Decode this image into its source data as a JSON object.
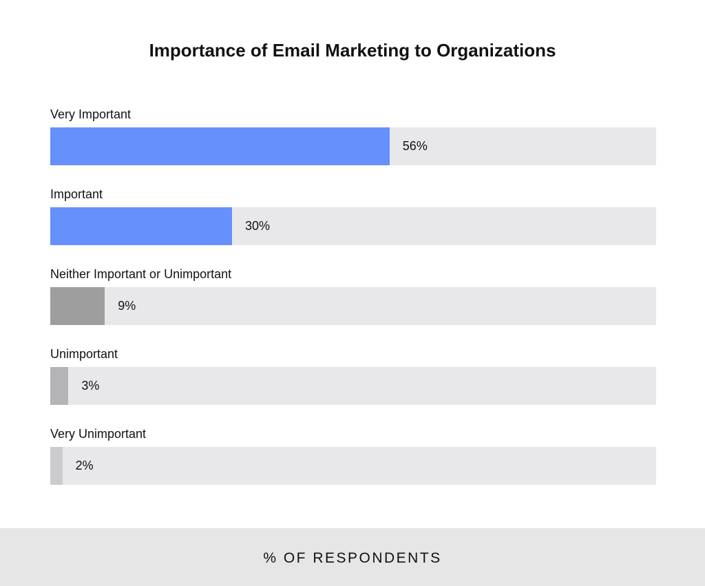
{
  "chart_data": {
    "type": "bar",
    "orientation": "horizontal",
    "title": "Importance of Email Marketing to Organizations",
    "xlabel": "% OF RESPONDENTS",
    "ylabel": "",
    "xlim": [
      0,
      100
    ],
    "grid": false,
    "categories": [
      "Very Important",
      "Important",
      "Neither Important or Unimportant",
      "Unimportant",
      "Very Unimportant"
    ],
    "values": [
      56,
      30,
      9,
      3,
      2
    ],
    "data_labels": [
      "56%",
      "30%",
      "9%",
      "3%",
      "2%"
    ],
    "colors": [
      "#6690fb",
      "#6690fb",
      "#9e9e9e",
      "#b4b4b6",
      "#cbcbcd"
    ],
    "track_color": "#e8e8ea"
  }
}
